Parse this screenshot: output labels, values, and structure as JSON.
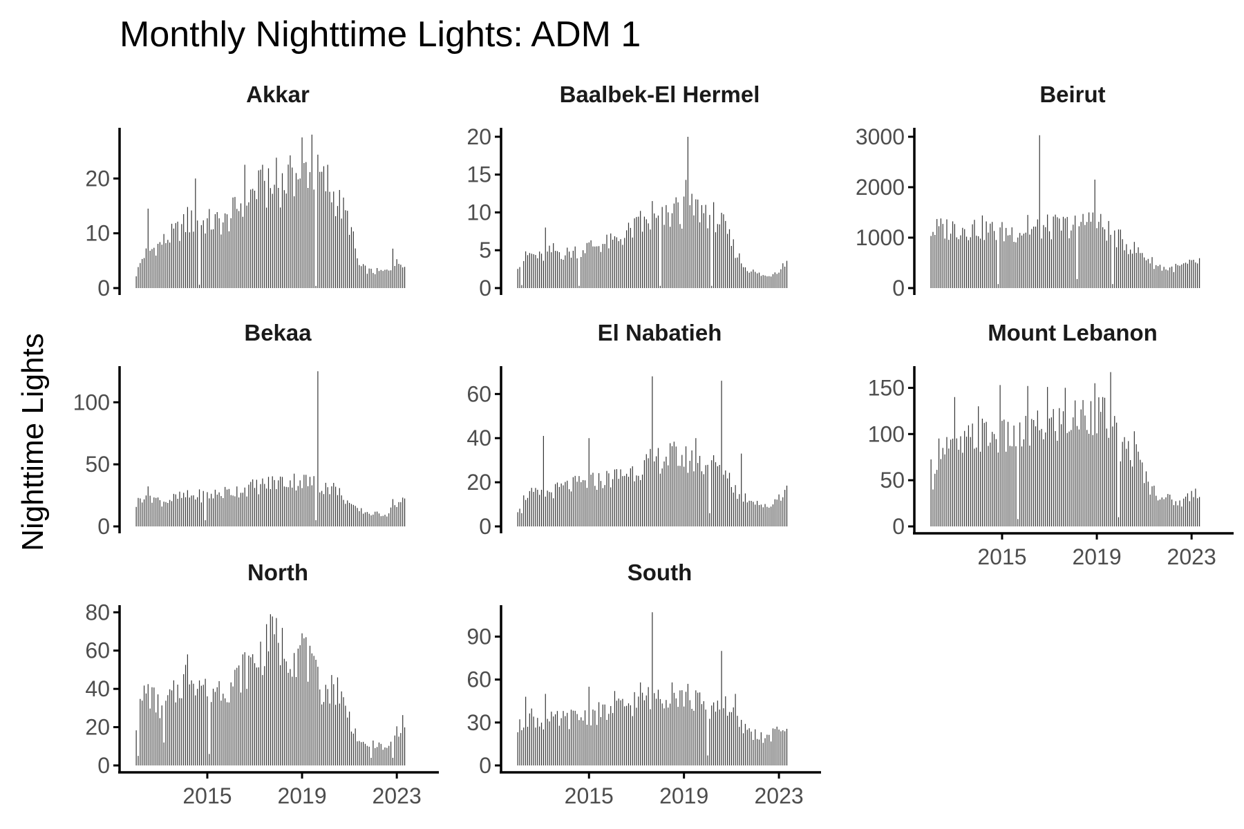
{
  "title": "Monthly Nighttime Lights: ADM 1",
  "ylabel": "Nighttime Lights",
  "colors": {
    "bar": "#333333",
    "axis": "#000000",
    "tick_text": "#4d4d4d"
  },
  "x_axis": {
    "ticks": [
      2015,
      2019,
      2023
    ],
    "tick_labels": [
      "2015",
      "2019",
      "2023"
    ],
    "xlim": [
      2011.5,
      2023.9
    ]
  },
  "chart_data": {
    "type": "bar",
    "title": "Monthly Nighttime Lights: ADM 1",
    "ylabel": "Nighttime Lights",
    "xlabel": "",
    "x_start": "2012-01",
    "x_end": "2023-05",
    "grid": false,
    "legend": "none",
    "panels": [
      {
        "name": "Akkar",
        "yticks": [
          0,
          10,
          20
        ],
        "ylim": [
          0,
          29
        ],
        "show_x_labels": false,
        "anchors": [
          [
            2012.0,
            2.5
          ],
          [
            2012.3,
            6
          ],
          [
            2013.0,
            8
          ],
          [
            2013.6,
            10
          ],
          [
            2014.2,
            12
          ],
          [
            2015.0,
            12
          ],
          [
            2015.8,
            12
          ],
          [
            2016.5,
            16
          ],
          [
            2017.1,
            18
          ],
          [
            2017.8,
            18
          ],
          [
            2018.5,
            20
          ],
          [
            2019.2,
            22
          ],
          [
            2019.8,
            20
          ],
          [
            2020.5,
            16
          ],
          [
            2021.0,
            12
          ],
          [
            2021.4,
            4
          ],
          [
            2021.9,
            3
          ],
          [
            2022.5,
            3
          ],
          [
            2023.0,
            4.5
          ],
          [
            2023.4,
            5
          ]
        ],
        "spikes": [
          [
            2012.5,
            14.5
          ],
          [
            2014.2,
            14.8
          ],
          [
            2014.5,
            20
          ],
          [
            2016.6,
            22.5
          ],
          [
            2017.3,
            22.5
          ],
          [
            2017.9,
            23.8
          ],
          [
            2018.6,
            22
          ],
          [
            2018.9,
            20
          ],
          [
            2019.0,
            27.5
          ],
          [
            2019.4,
            28
          ],
          [
            2020.1,
            22.5
          ],
          [
            2022.8,
            7.2
          ]
        ],
        "dips": [
          [
            2014.7,
            0.6
          ],
          [
            2019.6,
            0.4
          ]
        ]
      },
      {
        "name": "Baalbek-El Hermel",
        "yticks": [
          0,
          5,
          10,
          15,
          20
        ],
        "ylim": [
          0,
          21
        ],
        "show_x_labels": false,
        "anchors": [
          [
            2012.0,
            3.2
          ],
          [
            2012.5,
            4.5
          ],
          [
            2013.0,
            4.0
          ],
          [
            2013.5,
            5.0
          ],
          [
            2014.0,
            4.5
          ],
          [
            2014.5,
            5.0
          ],
          [
            2015.0,
            5.5
          ],
          [
            2015.5,
            5.8
          ],
          [
            2016.0,
            6.0
          ],
          [
            2016.5,
            7.0
          ],
          [
            2017.0,
            8.0
          ],
          [
            2017.5,
            8.5
          ],
          [
            2018.0,
            9.0
          ],
          [
            2018.5,
            9.5
          ],
          [
            2019.0,
            10.0
          ],
          [
            2019.5,
            10.5
          ],
          [
            2020.0,
            10.0
          ],
          [
            2020.5,
            9.0
          ],
          [
            2021.0,
            6.0
          ],
          [
            2021.5,
            3.0
          ],
          [
            2022.0,
            2.0
          ],
          [
            2022.5,
            1.5
          ],
          [
            2023.0,
            2.5
          ],
          [
            2023.4,
            3.8
          ]
        ],
        "spikes": [
          [
            2013.2,
            8.0
          ],
          [
            2017.2,
            10.2
          ],
          [
            2017.7,
            11.5
          ],
          [
            2018.7,
            12.0
          ],
          [
            2019.1,
            14.3
          ],
          [
            2019.2,
            20.0
          ],
          [
            2019.9,
            11.0
          ]
        ],
        "dips": [
          [
            2012.2,
            0.4
          ],
          [
            2014.6,
            0.3
          ],
          [
            2018.0,
            0.3
          ],
          [
            2020.2,
            0.3
          ]
        ]
      },
      {
        "name": "Beirut",
        "yticks": [
          0,
          1000,
          2000,
          3000
        ],
        "ylim": [
          0,
          3150
        ],
        "show_x_labels": false,
        "anchors": [
          [
            2012.0,
            1150
          ],
          [
            2013.0,
            1200
          ],
          [
            2014.0,
            1200
          ],
          [
            2015.0,
            1100
          ],
          [
            2016.0,
            1150
          ],
          [
            2017.0,
            1200
          ],
          [
            2018.0,
            1250
          ],
          [
            2018.8,
            1350
          ],
          [
            2019.3,
            1200
          ],
          [
            2020.0,
            950
          ],
          [
            2020.5,
            800
          ],
          [
            2021.0,
            650
          ],
          [
            2021.5,
            450
          ],
          [
            2022.0,
            380
          ],
          [
            2022.5,
            420
          ],
          [
            2023.0,
            480
          ],
          [
            2023.4,
            540
          ]
        ],
        "spikes": [
          [
            2016.6,
            3030
          ],
          [
            2018.9,
            2150
          ],
          [
            2018.7,
            1500
          ],
          [
            2016.1,
            1450
          ]
        ],
        "dips": [
          [
            2014.8,
            80
          ],
          [
            2018.2,
            180
          ],
          [
            2019.7,
            80
          ]
        ]
      },
      {
        "name": "Bekaa",
        "yticks": [
          0,
          50,
          100
        ],
        "ylim": [
          0,
          128
        ],
        "show_x_labels": false,
        "anchors": [
          [
            2012.0,
            18
          ],
          [
            2012.4,
            28
          ],
          [
            2013.0,
            20
          ],
          [
            2014.0,
            24
          ],
          [
            2015.0,
            25
          ],
          [
            2016.0,
            28
          ],
          [
            2017.0,
            32
          ],
          [
            2018.0,
            36
          ],
          [
            2019.0,
            37
          ],
          [
            2019.6,
            34
          ],
          [
            2020.5,
            30
          ],
          [
            2021.2,
            14
          ],
          [
            2022.0,
            10
          ],
          [
            2022.6,
            10
          ],
          [
            2023.0,
            18
          ],
          [
            2023.4,
            21
          ]
        ],
        "spikes": [
          [
            2019.7,
            125
          ],
          [
            2020.7,
            25
          ],
          [
            2022.8,
            22
          ]
        ],
        "dips": [
          [
            2014.9,
            5
          ],
          [
            2019.6,
            5
          ]
        ]
      },
      {
        "name": "El Nabatieh",
        "yticks": [
          0,
          20,
          40,
          60
        ],
        "ylim": [
          0,
          72
        ],
        "show_x_labels": false,
        "anchors": [
          [
            2012.0,
            8
          ],
          [
            2012.4,
            15
          ],
          [
            2013.0,
            14
          ],
          [
            2014.0,
            18
          ],
          [
            2015.0,
            20
          ],
          [
            2016.0,
            22
          ],
          [
            2017.0,
            26
          ],
          [
            2017.8,
            30
          ],
          [
            2018.5,
            32
          ],
          [
            2019.2,
            30
          ],
          [
            2020.0,
            28
          ],
          [
            2020.7,
            27
          ],
          [
            2021.3,
            14
          ],
          [
            2022.0,
            12
          ],
          [
            2022.5,
            8
          ],
          [
            2023.0,
            14
          ],
          [
            2023.4,
            17
          ]
        ],
        "spikes": [
          [
            2013.1,
            41
          ],
          [
            2015.0,
            40
          ],
          [
            2017.7,
            68
          ],
          [
            2019.5,
            40
          ],
          [
            2020.6,
            66
          ],
          [
            2021.4,
            33
          ]
        ],
        "dips": [
          [
            2012.2,
            6
          ],
          [
            2020.1,
            6
          ]
        ]
      },
      {
        "name": "Mount Lebanon",
        "yticks": [
          0,
          50,
          100,
          150
        ],
        "ylim": [
          0,
          172
        ],
        "show_x_labels": true,
        "anchors": [
          [
            2012.0,
            60
          ],
          [
            2012.5,
            95
          ],
          [
            2013.0,
            80
          ],
          [
            2014.0,
            100
          ],
          [
            2015.0,
            95
          ],
          [
            2016.0,
            100
          ],
          [
            2017.0,
            110
          ],
          [
            2018.0,
            115
          ],
          [
            2018.8,
            125
          ],
          [
            2019.5,
            115
          ],
          [
            2020.0,
            85
          ],
          [
            2020.6,
            80
          ],
          [
            2021.3,
            40
          ],
          [
            2022.0,
            30
          ],
          [
            2022.5,
            25
          ],
          [
            2023.0,
            35
          ],
          [
            2023.4,
            40
          ]
        ],
        "spikes": [
          [
            2013.0,
            140
          ],
          [
            2014.0,
            130
          ],
          [
            2014.9,
            153
          ],
          [
            2016.1,
            152
          ],
          [
            2016.9,
            151
          ],
          [
            2017.7,
            150
          ],
          [
            2018.9,
            155
          ],
          [
            2019.6,
            167
          ],
          [
            2020.6,
            103
          ]
        ],
        "dips": [
          [
            2012.1,
            40
          ],
          [
            2015.7,
            8
          ],
          [
            2019.9,
            10
          ]
        ]
      },
      {
        "name": "North",
        "yticks": [
          0,
          20,
          40,
          60,
          80
        ],
        "ylim": [
          0,
          83
        ],
        "show_x_labels": true,
        "anchors": [
          [
            2012.0,
            22
          ],
          [
            2012.4,
            40
          ],
          [
            2013.0,
            30
          ],
          [
            2013.7,
            38
          ],
          [
            2014.2,
            50
          ],
          [
            2015.0,
            40
          ],
          [
            2016.0,
            42
          ],
          [
            2017.0,
            55
          ],
          [
            2017.8,
            65
          ],
          [
            2018.5,
            60
          ],
          [
            2019.2,
            55
          ],
          [
            2019.8,
            40
          ],
          [
            2020.5,
            40
          ],
          [
            2021.0,
            25
          ],
          [
            2021.5,
            10
          ],
          [
            2022.0,
            12
          ],
          [
            2022.6,
            8
          ],
          [
            2023.0,
            18
          ],
          [
            2023.4,
            24
          ]
        ],
        "spikes": [
          [
            2014.2,
            58
          ],
          [
            2016.5,
            58
          ],
          [
            2017.7,
            79
          ],
          [
            2017.9,
            77
          ],
          [
            2019.0,
            69
          ],
          [
            2019.2,
            67
          ],
          [
            2020.5,
            46
          ]
        ],
        "dips": [
          [
            2012.1,
            5
          ],
          [
            2013.2,
            12
          ],
          [
            2015.1,
            6
          ],
          [
            2021.9,
            4
          ],
          [
            2022.8,
            4
          ]
        ]
      },
      {
        "name": "South",
        "yticks": [
          0,
          30,
          60,
          90
        ],
        "ylim": [
          0,
          111
        ],
        "show_x_labels": true,
        "anchors": [
          [
            2012.0,
            25
          ],
          [
            2012.5,
            35
          ],
          [
            2013.0,
            30
          ],
          [
            2014.0,
            32
          ],
          [
            2015.0,
            35
          ],
          [
            2016.0,
            38
          ],
          [
            2017.0,
            45
          ],
          [
            2017.8,
            50
          ],
          [
            2018.5,
            50
          ],
          [
            2019.2,
            48
          ],
          [
            2020.0,
            40
          ],
          [
            2020.7,
            45
          ],
          [
            2021.3,
            28
          ],
          [
            2022.0,
            22
          ],
          [
            2022.5,
            18
          ],
          [
            2023.0,
            25
          ],
          [
            2023.4,
            29
          ]
        ],
        "spikes": [
          [
            2012.3,
            48
          ],
          [
            2013.2,
            50
          ],
          [
            2015.0,
            55
          ],
          [
            2016.1,
            52
          ],
          [
            2017.2,
            58
          ],
          [
            2017.7,
            107
          ],
          [
            2018.5,
            58
          ],
          [
            2019.2,
            57
          ],
          [
            2020.6,
            80
          ],
          [
            2021.2,
            50
          ]
        ],
        "dips": [
          [
            2020.0,
            7
          ]
        ]
      }
    ]
  }
}
